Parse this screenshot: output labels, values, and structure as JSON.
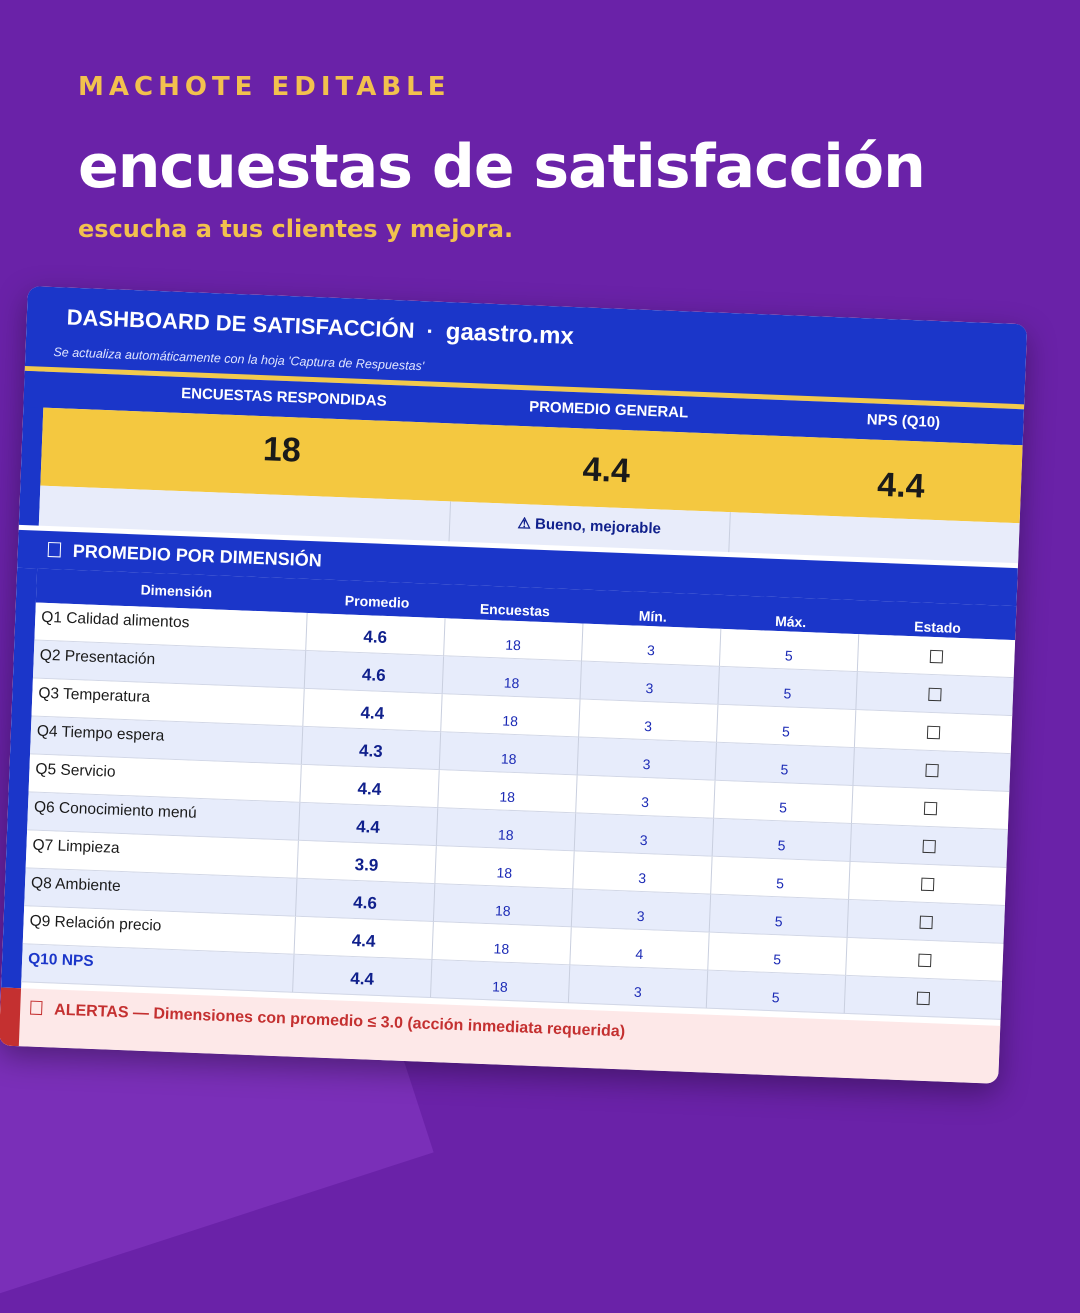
{
  "promo": {
    "eyebrow": "MACHOTE EDITABLE",
    "headline": "encuestas de satisfacción",
    "subline": "escucha a tus clientes y mejora."
  },
  "dashboard": {
    "title": "DASHBOARD DE SATISFACCIÓN",
    "separator": "·",
    "site": "gaastro.mx",
    "note": "Se actualiza automáticamente con la hoja 'Captura de Respuestas'"
  },
  "kpis": {
    "responded_label": "ENCUESTAS RESPONDIDAS",
    "responded_value": "18",
    "average_label": "PROMEDIO GENERAL",
    "average_value": "4.4",
    "nps_label": "NPS (Q10)",
    "nps_value": "4.4",
    "status": "⚠ Bueno, mejorable"
  },
  "section": {
    "title": "PROMEDIO POR DIMENSIÓN"
  },
  "table": {
    "headers": [
      "Dimensión",
      "Promedio",
      "Encuestas",
      "Mín.",
      "Máx.",
      "Estado"
    ],
    "rows": [
      {
        "dim": "Q1 Calidad alimentos",
        "avg": "4.6",
        "enc": "18",
        "min": "3",
        "max": "5",
        "est": "☐"
      },
      {
        "dim": "Q2 Presentación",
        "avg": "4.6",
        "enc": "18",
        "min": "3",
        "max": "5",
        "est": "☐"
      },
      {
        "dim": "Q3 Temperatura",
        "avg": "4.4",
        "enc": "18",
        "min": "3",
        "max": "5",
        "est": "☐"
      },
      {
        "dim": "Q4 Tiempo espera",
        "avg": "4.3",
        "enc": "18",
        "min": "3",
        "max": "5",
        "est": "☐"
      },
      {
        "dim": "Q5 Servicio",
        "avg": "4.4",
        "enc": "18",
        "min": "3",
        "max": "5",
        "est": "☐"
      },
      {
        "dim": "Q6 Conocimiento menú",
        "avg": "4.4",
        "enc": "18",
        "min": "3",
        "max": "5",
        "est": "☐"
      },
      {
        "dim": "Q7 Limpieza",
        "avg": "3.9",
        "enc": "18",
        "min": "3",
        "max": "5",
        "est": "☐"
      },
      {
        "dim": "Q8 Ambiente",
        "avg": "4.6",
        "enc": "18",
        "min": "3",
        "max": "5",
        "est": "☐"
      },
      {
        "dim": "Q9 Relación precio",
        "avg": "4.4",
        "enc": "18",
        "min": "4",
        "max": "5",
        "est": "☐"
      },
      {
        "dim": "Q10 NPS",
        "avg": "4.4",
        "enc": "18",
        "min": "3",
        "max": "5",
        "est": "☐"
      }
    ]
  },
  "alert": {
    "text": "ALERTAS — Dimensiones con promedio ≤ 3.0 (acción inmediata requerida)"
  },
  "colors": {
    "background": "#6a22a8",
    "accent_gold": "#f2c14e",
    "header_blue": "#1b36c9",
    "kpi_yellow": "#f4c840",
    "alert_red": "#c43030"
  }
}
